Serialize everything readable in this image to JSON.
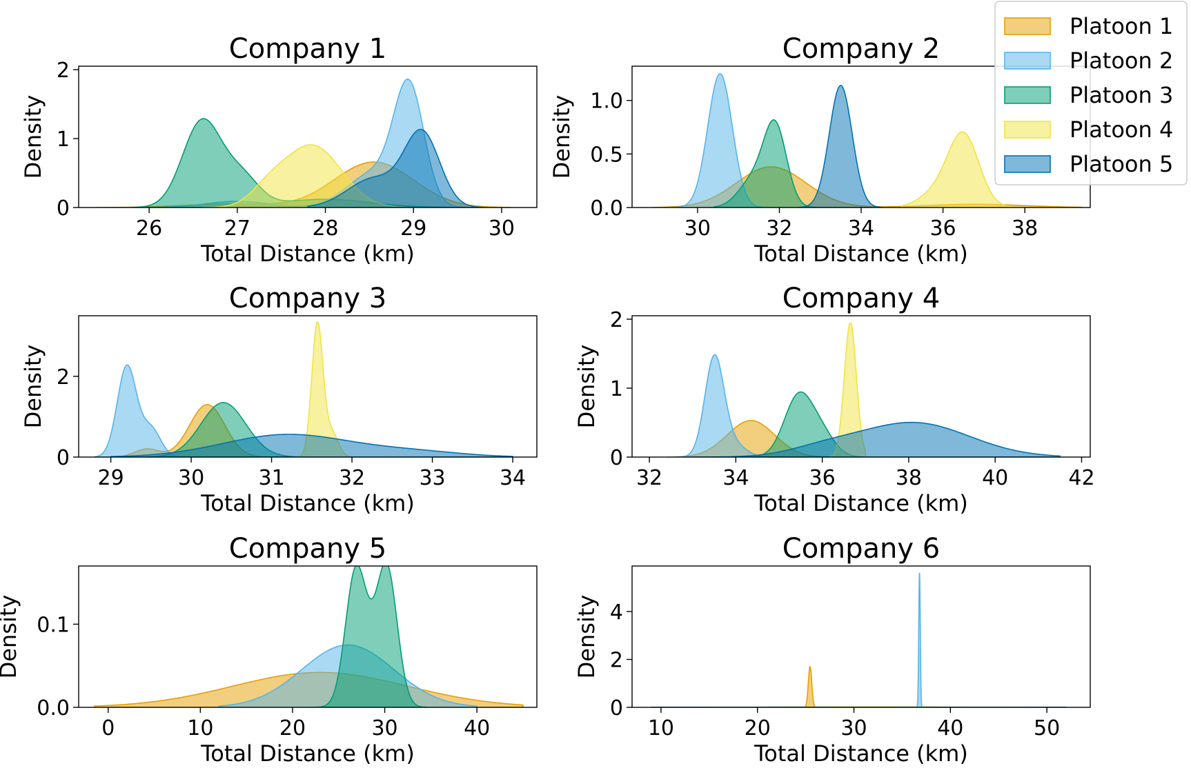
{
  "x_axis_label": "Total Distance (km)",
  "y_axis_label": "Density",
  "colors": {
    "Platoon 1": "#E69F00",
    "Platoon 2": "#56B4E9",
    "Platoon 3": "#009E73",
    "Platoon 4": "#F0E442",
    "Platoon 5": "#0072B2"
  },
  "legend": {
    "placement": "top-right",
    "entries": [
      "Platoon 1",
      "Platoon 2",
      "Platoon 3",
      "Platoon 4",
      "Platoon 5"
    ]
  },
  "chart_data": [
    {
      "type": "area",
      "title": "Company 1",
      "xlabel": "Total Distance (km)",
      "ylabel": "Density",
      "xlim": [
        25.2,
        30.4
      ],
      "ylim": [
        0,
        2.05
      ],
      "xticks": [
        {
          "v": 26,
          "label": "26"
        },
        {
          "v": 27,
          "label": "27"
        },
        {
          "v": 28,
          "label": "28"
        },
        {
          "v": 29,
          "label": "29"
        },
        {
          "v": 30,
          "label": "30"
        }
      ],
      "yticks": [
        {
          "v": 0,
          "label": "0"
        },
        {
          "v": 1,
          "label": "1"
        },
        {
          "v": 2,
          "label": "2"
        }
      ],
      "series": [
        {
          "name": "Platoon 1",
          "range": [
            25.4,
            30.1
          ],
          "peaks": [
            [
              28.55,
              0.66,
              0.45
            ],
            [
              26.9,
              0.05,
              0.5
            ]
          ]
        },
        {
          "name": "Platoon 2",
          "range": [
            26.2,
            29.8
          ],
          "peaks": [
            [
              28.95,
              1.65,
              0.17
            ],
            [
              28.55,
              0.5,
              0.3
            ],
            [
              27.0,
              0.09,
              0.35
            ]
          ]
        },
        {
          "name": "Platoon 3",
          "range": [
            25.8,
            29.6
          ],
          "peaks": [
            [
              26.6,
              1.25,
              0.22
            ],
            [
              27.05,
              0.42,
              0.2
            ],
            [
              28.0,
              0.12,
              0.5
            ]
          ]
        },
        {
          "name": "Platoon 4",
          "range": [
            26.6,
            29.0
          ],
          "peaks": [
            [
              27.85,
              0.9,
              0.33
            ],
            [
              27.35,
              0.2,
              0.2
            ]
          ]
        },
        {
          "name": "Platoon 5",
          "range": [
            27.8,
            29.8
          ],
          "peaks": [
            [
              29.1,
              1.05,
              0.2
            ],
            [
              28.55,
              0.42,
              0.3
            ]
          ]
        }
      ]
    },
    {
      "type": "area",
      "title": "Company 2",
      "xlabel": "Total Distance (km)",
      "ylabel": "Density",
      "xlim": [
        28.4,
        39.6
      ],
      "ylim": [
        0,
        1.32
      ],
      "xticks": [
        {
          "v": 30,
          "label": "30"
        },
        {
          "v": 32,
          "label": "32"
        },
        {
          "v": 34,
          "label": "34"
        },
        {
          "v": 36,
          "label": "36"
        },
        {
          "v": 38,
          "label": "38"
        }
      ],
      "yticks": [
        {
          "v": 0,
          "label": "0.0"
        },
        {
          "v": 0.5,
          "label": "0.5"
        },
        {
          "v": 1.0,
          "label": "1.0"
        }
      ],
      "series": [
        {
          "name": "Platoon 1",
          "range": [
            28.9,
            39.4
          ],
          "peaks": [
            [
              31.8,
              0.38,
              0.85
            ],
            [
              36.8,
              0.03,
              1.2
            ]
          ]
        },
        {
          "name": "Platoon 2",
          "range": [
            29.4,
            31.6
          ],
          "peaks": [
            [
              30.55,
              1.25,
              0.3
            ]
          ]
        },
        {
          "name": "Platoon 3",
          "range": [
            30.4,
            33.2
          ],
          "peaks": [
            [
              31.9,
              0.74,
              0.28
            ],
            [
              31.35,
              0.25,
              0.35
            ]
          ]
        },
        {
          "name": "Platoon 4",
          "range": [
            35.0,
            38.0
          ],
          "peaks": [
            [
              36.5,
              0.68,
              0.38
            ],
            [
              35.8,
              0.12,
              0.4
            ]
          ]
        },
        {
          "name": "Platoon 5",
          "range": [
            32.5,
            34.5
          ],
          "peaks": [
            [
              33.5,
              1.14,
              0.28
            ]
          ]
        }
      ]
    },
    {
      "type": "area",
      "title": "Company 3",
      "xlabel": "Total Distance (km)",
      "ylabel": "Density",
      "xlim": [
        28.6,
        34.3
      ],
      "ylim": [
        0,
        3.5
      ],
      "xticks": [
        {
          "v": 29,
          "label": "29"
        },
        {
          "v": 30,
          "label": "30"
        },
        {
          "v": 31,
          "label": "31"
        },
        {
          "v": 32,
          "label": "32"
        },
        {
          "v": 33,
          "label": "33"
        },
        {
          "v": 34,
          "label": "34"
        }
      ],
      "yticks": [
        {
          "v": 0,
          "label": "0"
        },
        {
          "v": 2,
          "label": "2"
        }
      ],
      "series": [
        {
          "name": "Platoon 1",
          "range": [
            29.0,
            31.4
          ],
          "peaks": [
            [
              30.2,
              1.3,
              0.22
            ],
            [
              29.45,
              0.2,
              0.15
            ]
          ]
        },
        {
          "name": "Platoon 2",
          "range": [
            28.8,
            29.9
          ],
          "peaks": [
            [
              29.2,
              2.25,
              0.12
            ],
            [
              29.5,
              0.7,
              0.12
            ]
          ]
        },
        {
          "name": "Platoon 3",
          "range": [
            29.5,
            31.4
          ],
          "peaks": [
            [
              30.4,
              1.35,
              0.28
            ]
          ]
        },
        {
          "name": "Platoon 4",
          "range": [
            31.2,
            32.0
          ],
          "peaks": [
            [
              31.57,
              3.3,
              0.07
            ],
            [
              31.75,
              0.6,
              0.08
            ]
          ]
        },
        {
          "name": "Platoon 5",
          "range": [
            29.0,
            34.0
          ],
          "peaks": [
            [
              31.2,
              0.56,
              0.8
            ],
            [
              32.8,
              0.12,
              0.6
            ]
          ]
        }
      ]
    },
    {
      "type": "area",
      "title": "Company 4",
      "xlabel": "Total Distance (km)",
      "ylabel": "Density",
      "xlim": [
        31.6,
        42.2
      ],
      "ylim": [
        0,
        2.05
      ],
      "xticks": [
        {
          "v": 32,
          "label": "32"
        },
        {
          "v": 34,
          "label": "34"
        },
        {
          "v": 36,
          "label": "36"
        },
        {
          "v": 38,
          "label": "38"
        },
        {
          "v": 40,
          "label": "40"
        },
        {
          "v": 42,
          "label": "42"
        }
      ],
      "yticks": [
        {
          "v": 0,
          "label": "0"
        },
        {
          "v": 1,
          "label": "1"
        },
        {
          "v": 2,
          "label": "2"
        }
      ],
      "series": [
        {
          "name": "Platoon 1",
          "range": [
            32.6,
            37.0
          ],
          "peaks": [
            [
              34.35,
              0.53,
              0.55
            ]
          ]
        },
        {
          "name": "Platoon 2",
          "range": [
            32.4,
            34.6
          ],
          "peaks": [
            [
              33.5,
              1.4,
              0.22
            ],
            [
              33.9,
              0.2,
              0.3
            ]
          ]
        },
        {
          "name": "Platoon 3",
          "range": [
            34.2,
            37.0
          ],
          "peaks": [
            [
              35.45,
              0.88,
              0.33
            ],
            [
              36.0,
              0.3,
              0.3
            ]
          ]
        },
        {
          "name": "Platoon 4",
          "range": [
            36.2,
            37.0
          ],
          "peaks": [
            [
              36.65,
              1.95,
              0.14
            ]
          ]
        },
        {
          "name": "Platoon 5",
          "range": [
            33.0,
            41.5
          ],
          "peaks": [
            [
              38.1,
              0.5,
              1.3
            ],
            [
              36.0,
              0.1,
              0.8
            ]
          ]
        }
      ]
    },
    {
      "type": "area",
      "title": "Company 5",
      "xlabel": "Total Distance (km)",
      "ylabel": "Density",
      "xlim": [
        -3.2,
        46.5
      ],
      "ylim": [
        0,
        0.17
      ],
      "xticks": [
        {
          "v": 0,
          "label": "0"
        },
        {
          "v": 10,
          "label": "10"
        },
        {
          "v": 20,
          "label": "20"
        },
        {
          "v": 30,
          "label": "30"
        },
        {
          "v": 40,
          "label": "40"
        }
      ],
      "yticks": [
        {
          "v": 0,
          "label": "0.0"
        },
        {
          "v": 0.1,
          "label": "0.1"
        }
      ],
      "series": [
        {
          "name": "Platoon 1",
          "range": [
            -1.5,
            45.0
          ],
          "peaks": [
            [
              23.0,
              0.042,
              9.5
            ]
          ]
        },
        {
          "name": "Platoon 2",
          "range": [
            12.0,
            40.0
          ],
          "peaks": [
            [
              26.0,
              0.075,
              5.0
            ]
          ]
        },
        {
          "name": "Platoon 3",
          "range": [
            22.0,
            34.5
          ],
          "peaks": [
            [
              26.8,
              0.14,
              1.1
            ],
            [
              30.3,
              0.145,
              1.1
            ],
            [
              28.5,
              0.05,
              1.6
            ]
          ]
        },
        {
          "name": "Platoon 4",
          "range": [
            22.0,
            34.5
          ],
          "peaks": []
        },
        {
          "name": "Platoon 5",
          "range": [
            22.0,
            34.5
          ],
          "peaks": []
        }
      ]
    },
    {
      "type": "area",
      "title": "Company 6",
      "xlabel": "Total Distance (km)",
      "ylabel": "Density",
      "xlim": [
        7.0,
        54.5
      ],
      "ylim": [
        0,
        5.9
      ],
      "xticks": [
        {
          "v": 10,
          "label": "10"
        },
        {
          "v": 20,
          "label": "20"
        },
        {
          "v": 30,
          "label": "30"
        },
        {
          "v": 40,
          "label": "40"
        },
        {
          "v": 50,
          "label": "50"
        }
      ],
      "yticks": [
        {
          "v": 0,
          "label": "0"
        },
        {
          "v": 2,
          "label": "2"
        },
        {
          "v": 4,
          "label": "4"
        }
      ],
      "series": [
        {
          "name": "Platoon 1",
          "range": [
            24.5,
            26.3
          ],
          "peaks": [
            [
              25.45,
              1.7,
              0.18
            ]
          ]
        },
        {
          "name": "Platoon 2",
          "range": [
            36.2,
            37.4
          ],
          "peaks": [
            [
              36.8,
              5.6,
              0.08
            ]
          ]
        },
        {
          "name": "Platoon 3",
          "range": [
            9.0,
            52.0
          ],
          "peaks": [
            [
              30.0,
              0.01,
              12.0
            ]
          ]
        },
        {
          "name": "Platoon 4",
          "range": [
            15.0,
            48.0
          ],
          "peaks": [
            [
              31.0,
              0.02,
              8.0
            ]
          ]
        },
        {
          "name": "Platoon 5",
          "range": [
            9.0,
            52.0
          ],
          "peaks": [
            [
              31.0,
              0.005,
              14.0
            ]
          ]
        }
      ]
    }
  ]
}
